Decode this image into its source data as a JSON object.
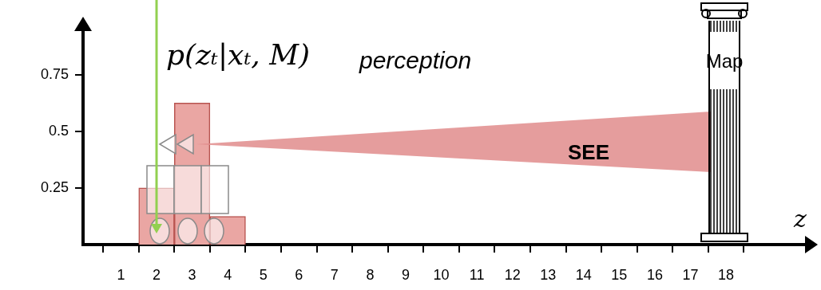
{
  "chart_data": {
    "type": "histogram",
    "y_label": "p(zₜ|xₜ, M)",
    "x_label": "z",
    "annotations": [
      "perception",
      "SEE",
      "Map"
    ],
    "bins": [
      1.5,
      2.5,
      3.5,
      4.5
    ],
    "values": [
      0.25,
      0.625,
      0.125
    ],
    "color": "#eaa6a3",
    "xlim": [
      0.5,
      19.7
    ],
    "xticks": [
      1,
      2,
      3,
      4,
      5,
      6,
      7,
      8,
      9,
      10,
      11,
      12,
      13,
      14,
      15,
      16,
      17,
      18
    ],
    "ylim": [
      0,
      0.95
    ],
    "yticks": [
      0.25,
      0.5,
      0.75
    ],
    "grid": false,
    "marker_line": {
      "x": 2,
      "color": "#92d050"
    }
  }
}
